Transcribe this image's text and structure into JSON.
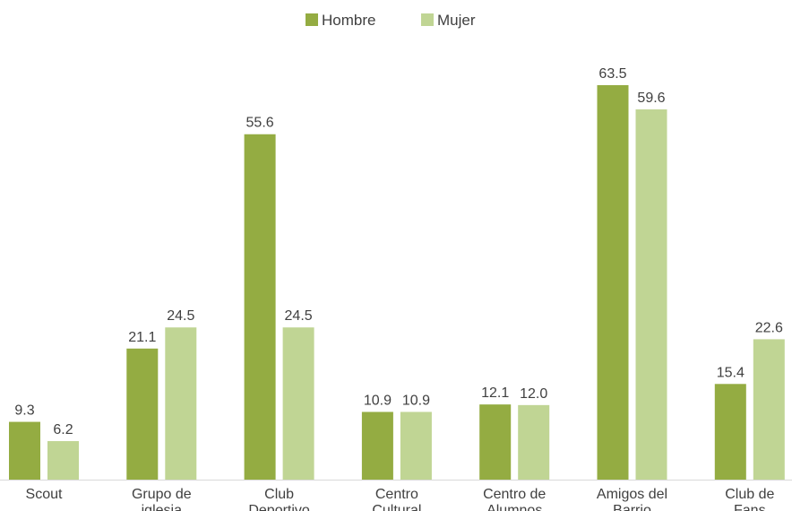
{
  "chart_data": {
    "type": "bar",
    "categories": [
      [
        "Scout"
      ],
      [
        "Grupo de",
        "iglesia"
      ],
      [
        "Club",
        "Deportivo"
      ],
      [
        "Centro",
        "Cultural"
      ],
      [
        "Centro de",
        "Alumnos"
      ],
      [
        "Amigos del",
        "Barrio"
      ],
      [
        "Club de",
        "Fans"
      ]
    ],
    "series": [
      {
        "name": "Hombre",
        "color": "#94ac42",
        "values": [
          9.3,
          21.1,
          55.6,
          10.9,
          12.1,
          63.5,
          15.4
        ]
      },
      {
        "name": "Mujer",
        "color": "#c0d594",
        "values": [
          6.2,
          24.5,
          24.5,
          10.9,
          12.0,
          59.6,
          22.6
        ]
      }
    ],
    "ylim": [
      0,
      63.5
    ],
    "grid": false,
    "legend_position": "top-center",
    "title": "",
    "xlabel": "",
    "ylabel": ""
  }
}
